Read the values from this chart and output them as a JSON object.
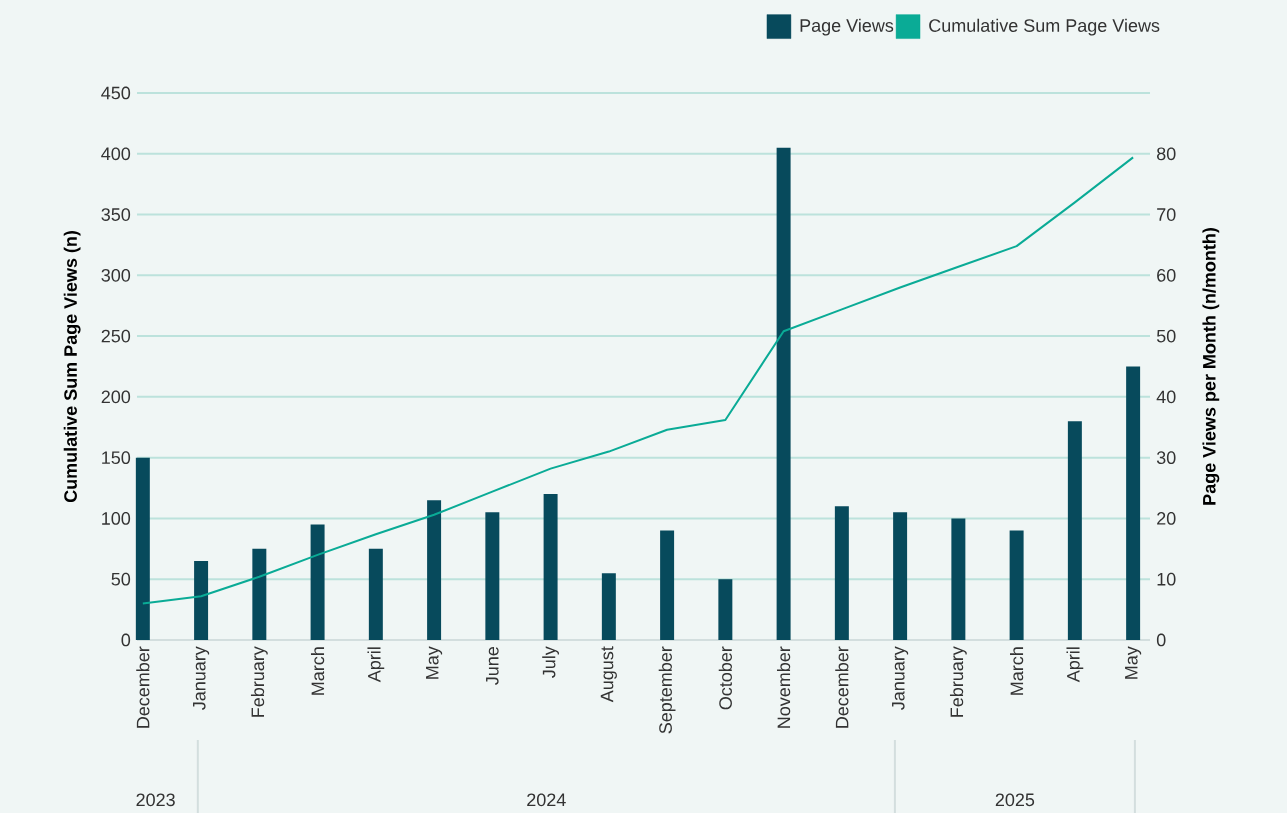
{
  "chart_data": {
    "type": "bar",
    "categories": [
      "December",
      "January",
      "February",
      "March",
      "April",
      "May",
      "June",
      "July",
      "August",
      "September",
      "October",
      "November",
      "December",
      "January",
      "February",
      "March",
      "April",
      "May"
    ],
    "series": [
      {
        "name": "Page Views",
        "axis": "y2",
        "color": "#074a5c",
        "values": [
          30,
          13,
          15,
          19,
          15,
          23,
          21,
          24,
          11,
          18,
          10,
          81,
          22,
          21,
          20,
          18,
          36,
          45
        ]
      },
      {
        "name": "Cumulative Sum Page Views",
        "type": "line",
        "color": "#0aab96",
        "values": [
          30,
          36,
          52,
          70,
          87,
          103,
          122,
          141,
          155,
          173,
          181,
          254,
          272,
          290,
          307,
          324,
          360,
          397
        ]
      }
    ],
    "ylabel": "Cumulative Sum Page Views (n)",
    "y2label": "Page Views per Month (n/month)",
    "ylim": [
      0,
      450
    ],
    "yticks": [
      0,
      50,
      100,
      150,
      200,
      250,
      300,
      350,
      400,
      450
    ],
    "y2lim": [
      0,
      90
    ],
    "y2ticks": [
      0,
      10,
      20,
      30,
      40,
      50,
      60,
      70,
      80
    ],
    "annotations": [
      "2023",
      "2024",
      "2025"
    ],
    "grid": "y",
    "legend": "top right",
    "marker": "none"
  }
}
